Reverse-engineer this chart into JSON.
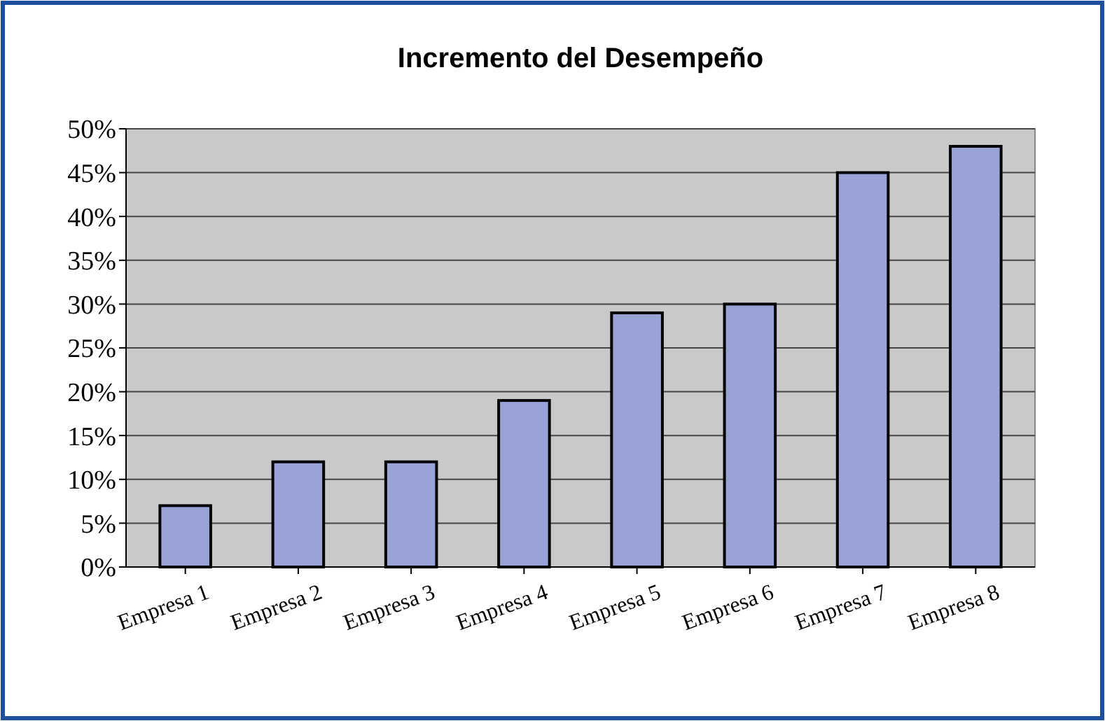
{
  "chart_data": {
    "type": "bar",
    "title": "Incremento del Desempeño",
    "categories": [
      "Empresa 1",
      "Empresa 2",
      "Empresa 3",
      "Empresa 4",
      "Empresa 5",
      "Empresa 6",
      "Empresa 7",
      "Empresa 8"
    ],
    "values": [
      7,
      12,
      12,
      19,
      29,
      30,
      45,
      48
    ],
    "color": "#9aa3d6",
    "ylim": [
      0,
      50
    ],
    "yticks": [
      {
        "value": 0,
        "label": "0%"
      },
      {
        "value": 5,
        "label": "5%"
      },
      {
        "value": 10,
        "label": "10%"
      },
      {
        "value": 15,
        "label": "15%"
      },
      {
        "value": 20,
        "label": "20%"
      },
      {
        "value": 25,
        "label": "25%"
      },
      {
        "value": 30,
        "label": "30%"
      },
      {
        "value": 35,
        "label": "35%"
      },
      {
        "value": 40,
        "label": "40%"
      },
      {
        "value": 45,
        "label": "45%"
      },
      {
        "value": 50,
        "label": "50%"
      }
    ],
    "grid": "y"
  }
}
